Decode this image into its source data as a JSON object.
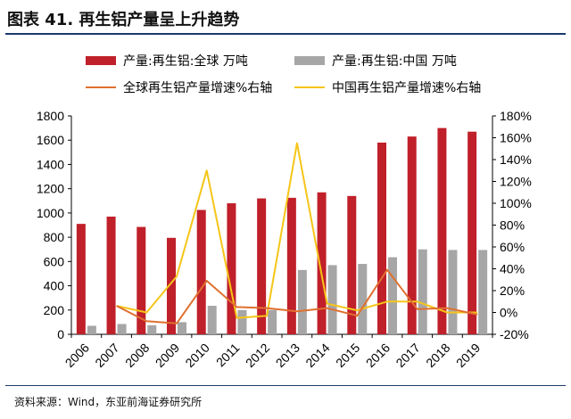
{
  "title": "图表 41. 再生铝产量呈上升趋势",
  "source": "资料来源：Wind，东亚前海证券研究所",
  "colors": {
    "bar_global": "#c0202a",
    "bar_china": "#a6a6a6",
    "line_global": "#e07030",
    "line_china": "#f5c518",
    "title_line": "#1b3a6b"
  },
  "chart_data": {
    "type": "bar",
    "title": "图表 41. 再生铝产量呈上升趋势",
    "categories": [
      "2006",
      "2007",
      "2008",
      "2009",
      "2010",
      "2011",
      "2012",
      "2013",
      "2014",
      "2015",
      "2016",
      "2017",
      "2018",
      "2019"
    ],
    "series": [
      {
        "name": "产量:再生铝:全球 万吨",
        "kind": "bar",
        "axis": "left",
        "values": [
          910,
          970,
          885,
          795,
          1025,
          1080,
          1120,
          1125,
          1170,
          1140,
          1580,
          1630,
          1700,
          1670
        ]
      },
      {
        "name": "产量:再生铝:中国 万吨",
        "kind": "bar",
        "axis": "left",
        "values": [
          70,
          85,
          75,
          100,
          235,
          200,
          200,
          530,
          570,
          580,
          635,
          700,
          695,
          695
        ]
      },
      {
        "name": "全球再生铝产量增速%右轴",
        "kind": "line",
        "axis": "right",
        "values": [
          null,
          6,
          -8,
          -10,
          29,
          5,
          4,
          1,
          4,
          -3,
          39,
          3,
          4,
          -2
        ]
      },
      {
        "name": "中国再生铝产量增速%右轴",
        "kind": "line",
        "axis": "right",
        "values": [
          null,
          6,
          0,
          33,
          130,
          -5,
          -3,
          155,
          8,
          2,
          10,
          10,
          0,
          0
        ]
      }
    ],
    "ylim": [
      0,
      1800
    ],
    "yticks": [
      "0",
      "200",
      "400",
      "600",
      "800",
      "1000",
      "1200",
      "1400",
      "1600",
      "1800"
    ],
    "y2lim": [
      -20,
      180
    ],
    "y2ticks": [
      "-20%",
      "0%",
      "20%",
      "40%",
      "60%",
      "80%",
      "100%",
      "120%",
      "140%",
      "160%",
      "180%"
    ],
    "legend_position": "top"
  }
}
